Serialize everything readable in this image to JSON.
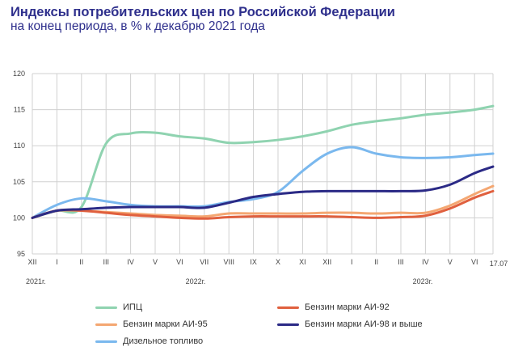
{
  "title": "Индексы потребительских цен по Российской Федерации",
  "subtitle": "на конец периода, в % к декабрю 2021 года",
  "chart_data": {
    "type": "line",
    "title": "Индексы потребительских цен по Российской Федерации",
    "subtitle": "на конец периода, в % к декабрю 2021 года",
    "categories": [
      "XII",
      "I",
      "II",
      "III",
      "IV",
      "V",
      "VI",
      "VII",
      "VIII",
      "IX",
      "X",
      "XI",
      "XII",
      "I",
      "II",
      "III",
      "IV",
      "V",
      "VI",
      "17.07"
    ],
    "x": [
      0,
      1,
      2,
      3,
      4,
      5,
      6,
      7,
      8,
      9,
      10,
      11,
      12,
      13,
      14,
      15,
      16,
      17,
      18,
      18.75
    ],
    "year_labels": [
      "2021г.",
      "2022г.",
      "2023г."
    ],
    "ylim": [
      95,
      120
    ],
    "yticks": [
      95,
      100,
      105,
      110,
      115,
      120
    ],
    "grid": true,
    "legend_position": "bottom",
    "series": [
      {
        "name": "ИПЦ",
        "color": "#8fd3b0",
        "values": [
          100,
          101,
          101.5,
          110.3,
          111.7,
          111.8,
          111.3,
          111,
          110.4,
          110.5,
          110.8,
          111.3,
          112,
          112.9,
          113.4,
          113.8,
          114.3,
          114.6,
          115,
          115.5
        ]
      },
      {
        "name": "Дизельное топливо",
        "color": "#7ab8ee",
        "values": [
          100,
          101.8,
          102.7,
          102.3,
          101.8,
          101.6,
          101.6,
          101.6,
          102.2,
          102.6,
          103.6,
          106.5,
          108.9,
          109.8,
          108.9,
          108.4,
          108.3,
          108.4,
          108.7,
          108.9
        ]
      },
      {
        "name": "Бензин марки АИ-95",
        "color": "#f4a772",
        "values": [
          100,
          101,
          101,
          100.8,
          100.6,
          100.4,
          100.3,
          100.2,
          100.6,
          100.6,
          100.6,
          100.6,
          100.7,
          100.7,
          100.6,
          100.7,
          100.7,
          101.7,
          103.3,
          104.4
        ]
      },
      {
        "name": "Бензин марки АИ-92",
        "color": "#e0603e",
        "values": [
          100,
          101,
          101,
          100.7,
          100.4,
          100.2,
          100,
          99.9,
          100.1,
          100.2,
          100.2,
          100.2,
          100.2,
          100.1,
          100,
          100.1,
          100.3,
          101.3,
          102.8,
          103.7
        ]
      },
      {
        "name": "Бензин марки АИ-98 и выше",
        "color": "#2b2a86",
        "values": [
          100,
          101,
          101.2,
          101.4,
          101.5,
          101.5,
          101.5,
          101.4,
          102.1,
          102.9,
          103.3,
          103.6,
          103.7,
          103.7,
          103.7,
          103.7,
          103.8,
          104.6,
          106.2,
          107.1
        ]
      }
    ]
  }
}
